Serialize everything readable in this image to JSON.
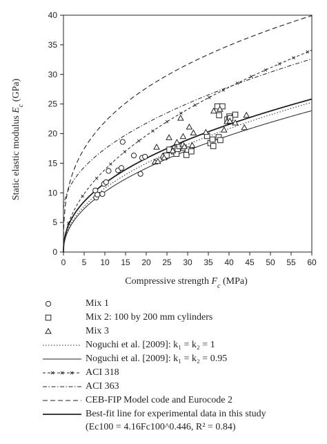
{
  "chart_data": {
    "type": "scatter",
    "xlabel": "Compressive strength F_c (MPa)",
    "ylabel": "Static elastic modulus E_c (GPa)",
    "xlim": [
      0,
      60
    ],
    "ylim": [
      0,
      40
    ],
    "xticks": [
      0,
      5,
      10,
      15,
      20,
      25,
      30,
      35,
      40,
      45,
      50,
      55,
      60
    ],
    "yticks": [
      0,
      5,
      10,
      15,
      20,
      25,
      30,
      35,
      40
    ],
    "grid": false,
    "series": [
      {
        "name": "Mix 1",
        "marker": "circle",
        "points": [
          [
            7.7,
            10.4
          ],
          [
            7.9,
            9.2
          ],
          [
            8.2,
            9.7
          ],
          [
            9.4,
            9.8
          ],
          [
            9.8,
            11.5
          ],
          [
            10.3,
            11.8
          ],
          [
            10.9,
            13.7
          ],
          [
            13.2,
            13.8
          ],
          [
            14.0,
            14.2
          ],
          [
            14.3,
            18.6
          ],
          [
            17.0,
            16.3
          ],
          [
            18.6,
            13.2
          ],
          [
            19.0,
            15.9
          ],
          [
            19.7,
            16.1
          ]
        ]
      },
      {
        "name": "Mix 2: 100 by 200 mm cylinders",
        "marker": "square",
        "points": [
          [
            24.6,
            16.2
          ],
          [
            24.9,
            16.3
          ],
          [
            25.6,
            17.3
          ],
          [
            26.7,
            17.0
          ],
          [
            27.3,
            16.6
          ],
          [
            27.6,
            17.4
          ],
          [
            28.0,
            17.9
          ],
          [
            29.0,
            17.6
          ],
          [
            29.7,
            16.4
          ],
          [
            30.0,
            17.3
          ],
          [
            30.9,
            17.0
          ],
          [
            34.7,
            19.6
          ],
          [
            35.5,
            18.4
          ],
          [
            36.0,
            19.0
          ],
          [
            36.2,
            17.9
          ],
          [
            37.2,
            24.6
          ],
          [
            37.5,
            19.4
          ],
          [
            37.6,
            23.1
          ],
          [
            37.9,
            18.9
          ],
          [
            38.4,
            24.6
          ],
          [
            39.6,
            22.4
          ],
          [
            40.1,
            22.9
          ],
          [
            40.3,
            22.6
          ],
          [
            41.5,
            23.2
          ]
        ]
      },
      {
        "name": "Mix 3",
        "marker": "triangle",
        "points": [
          [
            22.1,
            15.2
          ],
          [
            22.5,
            17.7
          ],
          [
            22.8,
            15.3
          ],
          [
            24.0,
            16.2
          ],
          [
            24.3,
            15.9
          ],
          [
            25.5,
            19.3
          ],
          [
            26.4,
            17.1
          ],
          [
            27.4,
            18.5
          ],
          [
            28.3,
            22.6
          ],
          [
            28.8,
            18.2
          ],
          [
            28.9,
            19.5
          ],
          [
            29.2,
            17.8
          ],
          [
            30.4,
            21.1
          ],
          [
            31.1,
            18.0
          ],
          [
            31.4,
            20.1
          ],
          [
            34.4,
            20.2
          ],
          [
            36.3,
            23.8
          ],
          [
            37.8,
            24.1
          ],
          [
            38.8,
            20.6
          ],
          [
            39.5,
            22.0
          ],
          [
            40.2,
            22.1
          ],
          [
            41.5,
            21.8
          ],
          [
            43.7,
            21.0
          ],
          [
            44.2,
            23.1
          ]
        ]
      },
      {
        "name": "Noguchi et al. [2009]: k1 = k2 = 1",
        "style": "dotted",
        "curve": {
          "a": 3.6,
          "b": 0.476
        }
      },
      {
        "name": "Noguchi et al. [2009]: k1 = k2 = 0.95",
        "style": "solid-thin",
        "curve": {
          "a": 3.4,
          "b": 0.476
        }
      },
      {
        "name": "ACI 318",
        "style": "dash-cross",
        "curve": {
          "a": 4.4,
          "b": 0.5
        }
      },
      {
        "name": "ACI 363",
        "style": "dash-dot",
        "curve": {
          "a": 3.32,
          "b": 0.5,
          "c": 6.9
        }
      },
      {
        "name": "CEB-FIP Model code and Eurocode 2",
        "style": "dashed",
        "curve": {
          "a": 10.2,
          "b": 0.3333
        }
      },
      {
        "name": "Best-fit line for experimental data in this study",
        "style": "solid-thick",
        "curve": {
          "a": 4.16,
          "b": 0.446
        }
      }
    ]
  },
  "legend": [
    {
      "key": "circle",
      "label": "Mix 1"
    },
    {
      "key": "square",
      "label": "Mix 2: 100 by 200 mm cylinders"
    },
    {
      "key": "triangle",
      "label": "Mix 3"
    },
    {
      "key": "dotted",
      "label": "Noguchi et al. [2009]: k₁ = k₂ = 1"
    },
    {
      "key": "solid-thin",
      "label": "Noguchi et al. [2009]: k₁ = k₂ = 0.95"
    },
    {
      "key": "dash-cross",
      "label": "ACI 318"
    },
    {
      "key": "dash-dot",
      "label": "ACI 363"
    },
    {
      "key": "dashed",
      "label": "CEB-FIP Model code and Eurocode 2"
    },
    {
      "key": "solid-thick",
      "label": "Best-fit line for experimental data in this study"
    }
  ],
  "best_fit_equation": "(Ec100 = 4.16Fc100^0.446, R² = 0.84)"
}
